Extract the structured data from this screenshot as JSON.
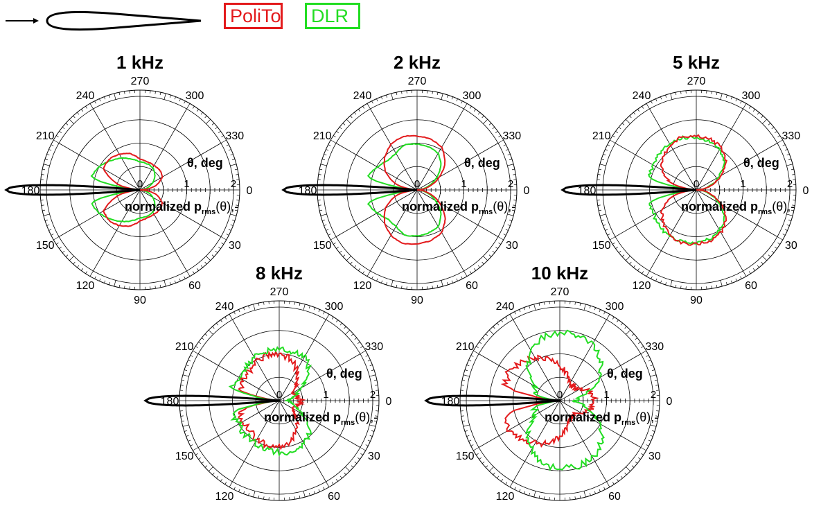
{
  "legend": [
    {
      "label": "PoliTo",
      "color": "#e31a1c"
    },
    {
      "label": "DLR",
      "color": "#22dd22"
    }
  ],
  "colors": {
    "polito": "#e31a1c",
    "dlr": "#22dd22",
    "airfoil": "#000000",
    "grid": "#000000"
  },
  "labels": {
    "theta": "θ, deg",
    "radial_prefix": "normalized p",
    "radial_sub": "rms",
    "radial_suffix": "(θ),-"
  },
  "chart_data": [
    {
      "type": "polar",
      "title": "1 kHz",
      "angle_ticks": [
        "0",
        "30",
        "60",
        "90",
        "120",
        "150",
        "180",
        "210",
        "240",
        "270",
        "300",
        "330"
      ],
      "radial_ticks": [
        "0",
        "1",
        "2"
      ],
      "rlim": [
        0,
        2
      ],
      "series": [
        {
          "name": "PoliTo",
          "theta": [
            0,
            15,
            30,
            45,
            60,
            75,
            90,
            105,
            120,
            135,
            150,
            165,
            180,
            195,
            210,
            225,
            240,
            255,
            270,
            285,
            300,
            315,
            330,
            345,
            360
          ],
          "r": [
            0,
            0.35,
            0.55,
            0.6,
            0.6,
            0.62,
            0.66,
            0.8,
            0.88,
            0.93,
            0.9,
            0.5,
            0,
            0.5,
            0.9,
            0.93,
            0.88,
            0.8,
            0.66,
            0.62,
            0.6,
            0.6,
            0.55,
            0.35,
            0
          ]
        },
        {
          "name": "DLR",
          "theta": [
            0,
            15,
            30,
            45,
            60,
            75,
            90,
            105,
            120,
            135,
            150,
            165,
            180,
            195,
            210,
            225,
            240,
            255,
            270,
            285,
            300,
            315,
            330,
            345,
            360
          ],
          "r": [
            0,
            0.15,
            0.32,
            0.45,
            0.55,
            0.58,
            0.6,
            0.68,
            0.78,
            0.88,
            1.0,
            1.08,
            0,
            1.08,
            1.0,
            0.88,
            0.78,
            0.68,
            0.6,
            0.58,
            0.55,
            0.45,
            0.32,
            0.15,
            0
          ]
        }
      ]
    },
    {
      "type": "polar",
      "title": "2 kHz",
      "angle_ticks": [
        "0",
        "30",
        "60",
        "90",
        "120",
        "150",
        "180",
        "210",
        "240",
        "270",
        "300",
        "330"
      ],
      "radial_ticks": [
        "0",
        "1",
        "2"
      ],
      "rlim": [
        0,
        2
      ],
      "series": [
        {
          "name": "PoliTo",
          "theta": [
            0,
            15,
            30,
            45,
            60,
            75,
            90,
            105,
            120,
            135,
            150,
            165,
            180,
            195,
            210,
            225,
            240,
            255,
            270,
            285,
            300,
            315,
            330,
            345,
            360
          ],
          "r": [
            0,
            0.25,
            0.55,
            0.85,
            1.05,
            1.12,
            1.15,
            1.18,
            1.12,
            0.98,
            0.78,
            0.45,
            0,
            0.45,
            0.78,
            0.98,
            1.12,
            1.18,
            1.15,
            1.12,
            1.05,
            0.85,
            0.55,
            0.25,
            0
          ]
        },
        {
          "name": "DLR",
          "theta": [
            0,
            15,
            30,
            45,
            60,
            75,
            90,
            105,
            120,
            135,
            150,
            165,
            180,
            195,
            210,
            225,
            240,
            255,
            270,
            285,
            300,
            315,
            330,
            345,
            360
          ],
          "r": [
            0,
            0.2,
            0.45,
            0.72,
            0.9,
            0.95,
            0.98,
            1.0,
            0.9,
            0.88,
            0.98,
            1.1,
            0,
            1.1,
            0.98,
            0.88,
            0.9,
            1.0,
            0.98,
            0.95,
            0.9,
            0.72,
            0.45,
            0.2,
            0
          ]
        }
      ]
    },
    {
      "type": "polar",
      "title": "5 kHz",
      "angle_ticks": [
        "0",
        "30",
        "60",
        "90",
        "120",
        "150",
        "180",
        "210",
        "240",
        "270",
        "300",
        "330"
      ],
      "radial_ticks": [
        "0",
        "1",
        "2"
      ],
      "rlim": [
        0,
        2
      ],
      "series": [
        {
          "name": "PoliTo",
          "theta": [
            0,
            15,
            30,
            45,
            60,
            75,
            90,
            105,
            120,
            135,
            150,
            165,
            180,
            195,
            210,
            225,
            240,
            255,
            270,
            285,
            300,
            315,
            330,
            345,
            360
          ],
          "r": [
            0,
            0.3,
            0.6,
            0.9,
            1.05,
            1.12,
            1.15,
            1.18,
            1.1,
            1.0,
            0.85,
            0.55,
            0,
            0.55,
            0.85,
            1.0,
            1.1,
            1.18,
            1.15,
            1.12,
            1.05,
            0.9,
            0.6,
            0.3,
            0
          ]
        },
        {
          "name": "DLR",
          "theta": [
            0,
            15,
            30,
            45,
            60,
            75,
            90,
            105,
            120,
            135,
            150,
            165,
            180,
            195,
            210,
            225,
            240,
            255,
            270,
            285,
            300,
            315,
            330,
            345,
            360
          ],
          "r": [
            0,
            0.28,
            0.55,
            0.85,
            1.0,
            1.08,
            1.12,
            1.15,
            1.15,
            1.1,
            1.05,
            1.05,
            0,
            1.05,
            1.05,
            1.1,
            1.15,
            1.15,
            1.12,
            1.08,
            1.0,
            0.85,
            0.55,
            0.28,
            0
          ]
        }
      ]
    },
    {
      "type": "polar",
      "title": "8 kHz",
      "angle_ticks": [
        "0",
        "30",
        "60",
        "90",
        "120",
        "150",
        "180",
        "210",
        "240",
        "270",
        "300",
        "330"
      ],
      "radial_ticks": [
        "0",
        "1",
        "2"
      ],
      "rlim": [
        0,
        2
      ],
      "series": [
        {
          "name": "PoliTo",
          "theta": [
            0,
            15,
            30,
            45,
            60,
            75,
            90,
            105,
            120,
            135,
            150,
            165,
            180,
            195,
            210,
            225,
            240,
            255,
            270,
            285,
            300,
            315,
            330,
            345,
            360
          ],
          "r": [
            0.45,
            0.4,
            0.35,
            0.5,
            0.75,
            0.92,
            1.0,
            1.0,
            0.95,
            0.9,
            0.9,
            0.85,
            0,
            0.85,
            0.9,
            0.9,
            0.95,
            1.0,
            1.0,
            0.92,
            0.75,
            0.5,
            0.35,
            0.4,
            0.45
          ]
        },
        {
          "name": "DLR",
          "theta": [
            0,
            15,
            30,
            45,
            60,
            75,
            90,
            105,
            120,
            135,
            150,
            165,
            180,
            195,
            210,
            225,
            240,
            255,
            270,
            285,
            300,
            315,
            330,
            345,
            360
          ],
          "r": [
            0.15,
            0.3,
            0.55,
            0.9,
            1.08,
            1.1,
            1.1,
            1.08,
            1.05,
            1.02,
            1.0,
            1.05,
            0,
            1.05,
            1.0,
            1.02,
            1.05,
            1.08,
            1.1,
            1.1,
            1.08,
            0.9,
            0.55,
            0.3,
            0.15
          ]
        }
      ]
    },
    {
      "type": "polar",
      "title": "10 kHz",
      "angle_ticks": [
        "0",
        "30",
        "60",
        "90",
        "120",
        "150",
        "180",
        "210",
        "240",
        "270",
        "300",
        "330"
      ],
      "radial_ticks": [
        "0",
        "1",
        "2"
      ],
      "rlim": [
        0,
        2
      ],
      "series": [
        {
          "name": "PoliTo",
          "theta": [
            0,
            15,
            30,
            45,
            60,
            75,
            90,
            105,
            120,
            135,
            150,
            165,
            180,
            195,
            210,
            225,
            240,
            255,
            270,
            285,
            300,
            315,
            330,
            345,
            360
          ],
          "r": [
            0.75,
            0.7,
            0.5,
            0.4,
            0.45,
            0.6,
            0.75,
            0.95,
            1.05,
            1.15,
            1.25,
            1.2,
            0,
            1.2,
            1.25,
            1.15,
            1.05,
            0.95,
            0.75,
            0.6,
            0.45,
            0.4,
            0.5,
            0.7,
            0.75
          ]
        },
        {
          "name": "DLR",
          "theta": [
            0,
            15,
            30,
            45,
            60,
            75,
            90,
            105,
            120,
            135,
            150,
            165,
            180,
            195,
            210,
            225,
            240,
            255,
            270,
            285,
            300,
            315,
            330,
            345,
            360
          ],
          "r": [
            0.3,
            0.55,
            1.0,
            1.25,
            1.4,
            1.45,
            1.45,
            1.4,
            1.2,
            0.95,
            0.6,
            0.55,
            0,
            0.55,
            0.6,
            0.95,
            1.2,
            1.4,
            1.45,
            1.45,
            1.4,
            1.25,
            1.0,
            0.55,
            0.3
          ]
        }
      ]
    }
  ]
}
